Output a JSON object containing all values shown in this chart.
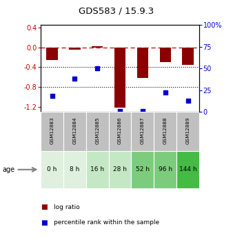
{
  "title": "GDS583 / 15.9.3",
  "samples": [
    "GSM12883",
    "GSM12884",
    "GSM12885",
    "GSM12886",
    "GSM12887",
    "GSM12888",
    "GSM12889"
  ],
  "ages": [
    "0 h",
    "8 h",
    "16 h",
    "28 h",
    "52 h",
    "96 h",
    "144 h"
  ],
  "log_ratio": [
    -0.25,
    -0.05,
    0.02,
    -1.22,
    -0.62,
    -0.3,
    -0.35
  ],
  "percentile_rank": [
    18,
    38,
    50,
    1,
    1,
    22,
    13
  ],
  "ylim_left": [
    -1.3,
    0.45
  ],
  "ylim_right": [
    0,
    100
  ],
  "bar_color": "#8B0000",
  "dot_color": "#0000CD",
  "left_ticks": [
    -1.2,
    -0.8,
    -0.4,
    0.0,
    0.4
  ],
  "right_ticks": [
    0,
    25,
    50,
    75,
    100
  ],
  "right_tick_labels": [
    "0",
    "25",
    "50",
    "75",
    "100%"
  ],
  "age_bg_colors": [
    "#dff0df",
    "#dff0df",
    "#c4e8c4",
    "#c4e8c4",
    "#7dcc7d",
    "#7dcc7d",
    "#44bb44"
  ],
  "gsm_bg_color": "#c0c0c0",
  "plot_bg_color": "#ffffff",
  "age_label": "age",
  "bar_width": 0.5,
  "dot_size": 18
}
